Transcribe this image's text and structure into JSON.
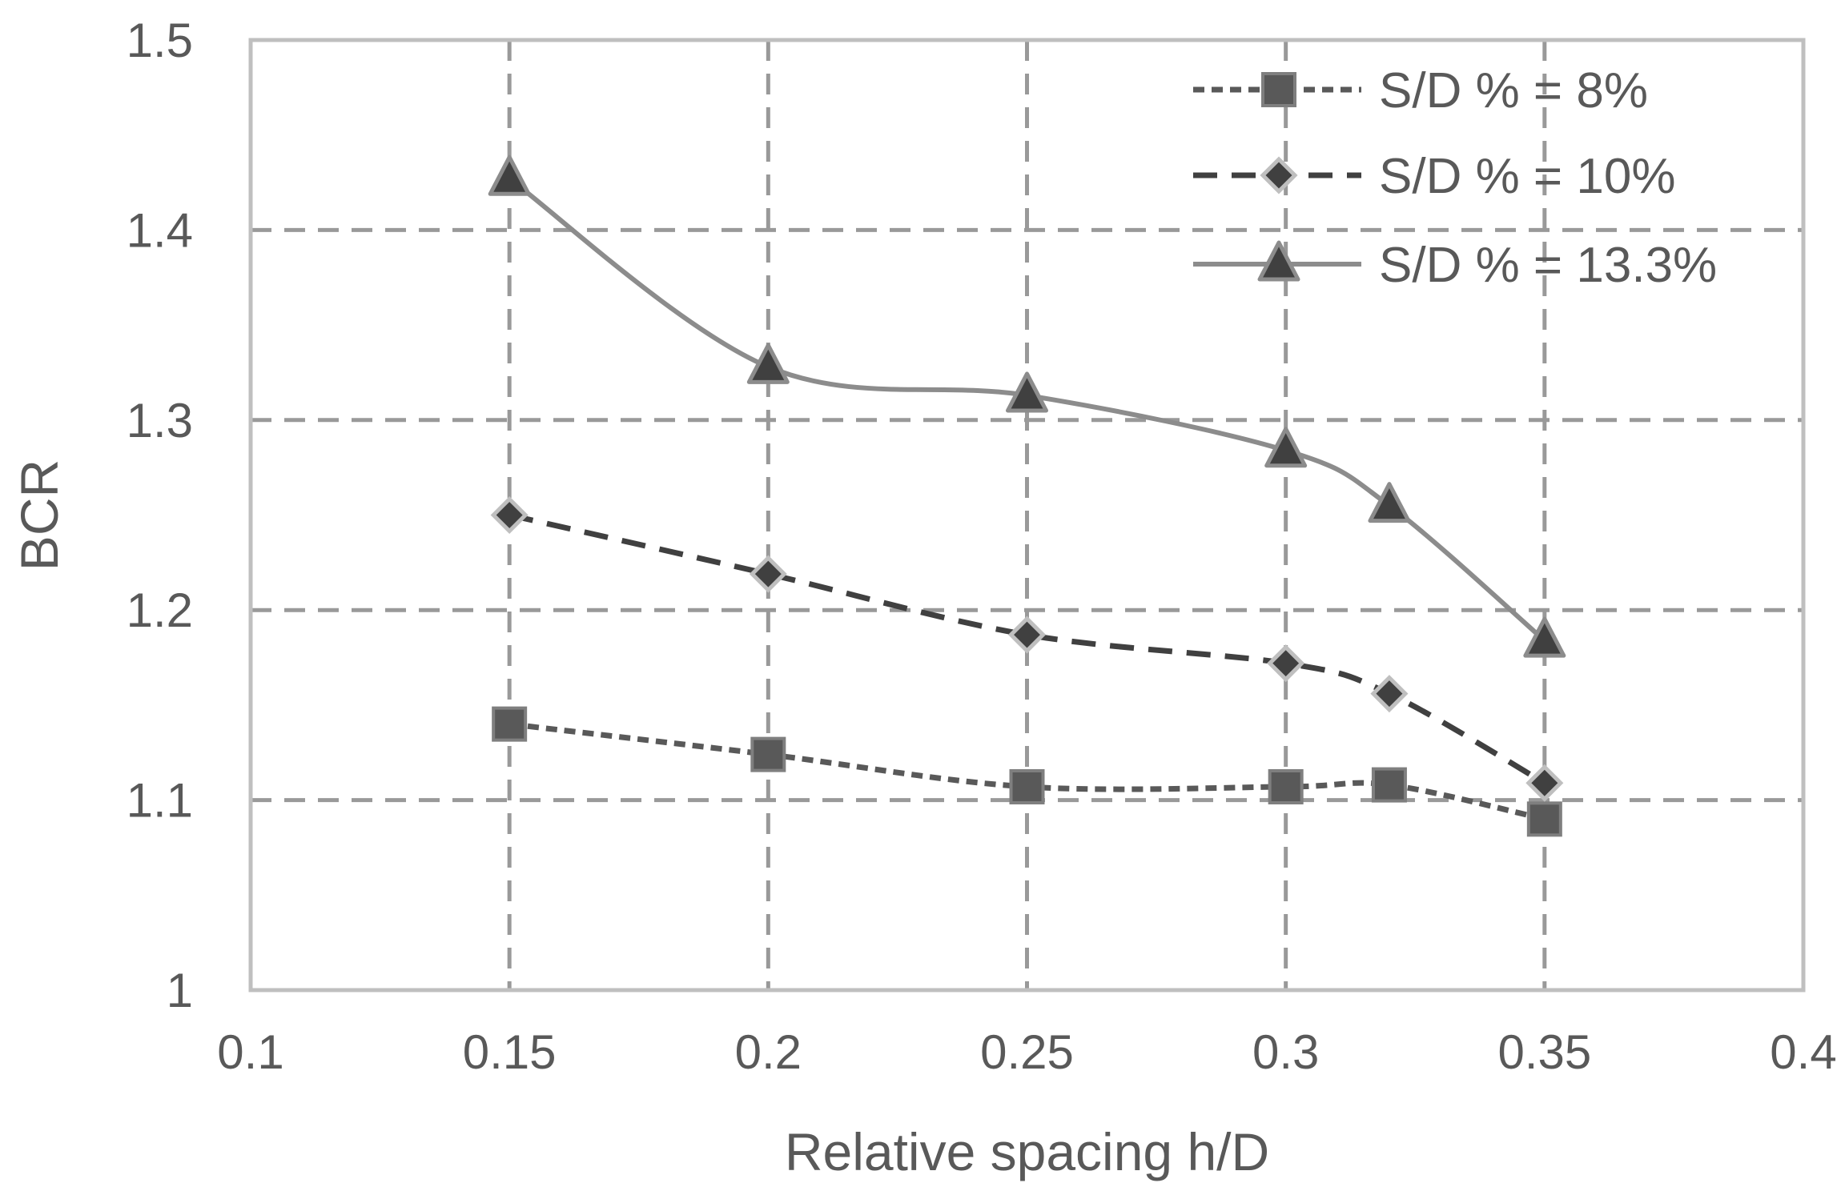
{
  "chart_data": {
    "type": "line",
    "title": "",
    "xlabel": "Relative spacing h/D",
    "ylabel": "BCR",
    "xlim": [
      0.1,
      0.4
    ],
    "ylim": [
      1.0,
      1.5
    ],
    "x_ticks": [
      0.1,
      0.15,
      0.2,
      0.25,
      0.3,
      0.35,
      0.4
    ],
    "x_tick_labels": [
      "0.1",
      "0.15",
      "0.2",
      "0.25",
      "0.3",
      "0.35",
      "0.4"
    ],
    "y_ticks": [
      1.0,
      1.1,
      1.2,
      1.3,
      1.4,
      1.5
    ],
    "y_tick_labels": [
      "1",
      "1.1",
      "1.2",
      "1.3",
      "1.4",
      "1.5"
    ],
    "grid": true,
    "legend_position": "top-right",
    "series": [
      {
        "name": "S/D % = 8%",
        "marker": "square",
        "line_style": "dotted",
        "line_color": "#595959",
        "marker_color": "#595959",
        "marker_edge": "#7f7f7f",
        "x": [
          0.15,
          0.2,
          0.25,
          0.3,
          0.32,
          0.35
        ],
        "y": [
          1.14,
          1.124,
          1.107,
          1.107,
          1.108,
          1.09
        ]
      },
      {
        "name": "S/D % = 10%",
        "marker": "diamond",
        "line_style": "dashed",
        "line_color": "#404040",
        "marker_color": "#404040",
        "marker_edge": "#bfbfbf",
        "x": [
          0.15,
          0.2,
          0.25,
          0.3,
          0.32,
          0.35
        ],
        "y": [
          1.25,
          1.219,
          1.187,
          1.172,
          1.156,
          1.109
        ]
      },
      {
        "name": "S/D % = 13.3%",
        "marker": "triangle",
        "line_style": "solid",
        "line_color": "#8c8c8c",
        "marker_color": "#404040",
        "marker_edge": "#8c8c8c",
        "x": [
          0.15,
          0.2,
          0.25,
          0.3,
          0.32,
          0.35
        ],
        "y": [
          1.427,
          1.328,
          1.313,
          1.284,
          1.255,
          1.184
        ]
      }
    ]
  }
}
